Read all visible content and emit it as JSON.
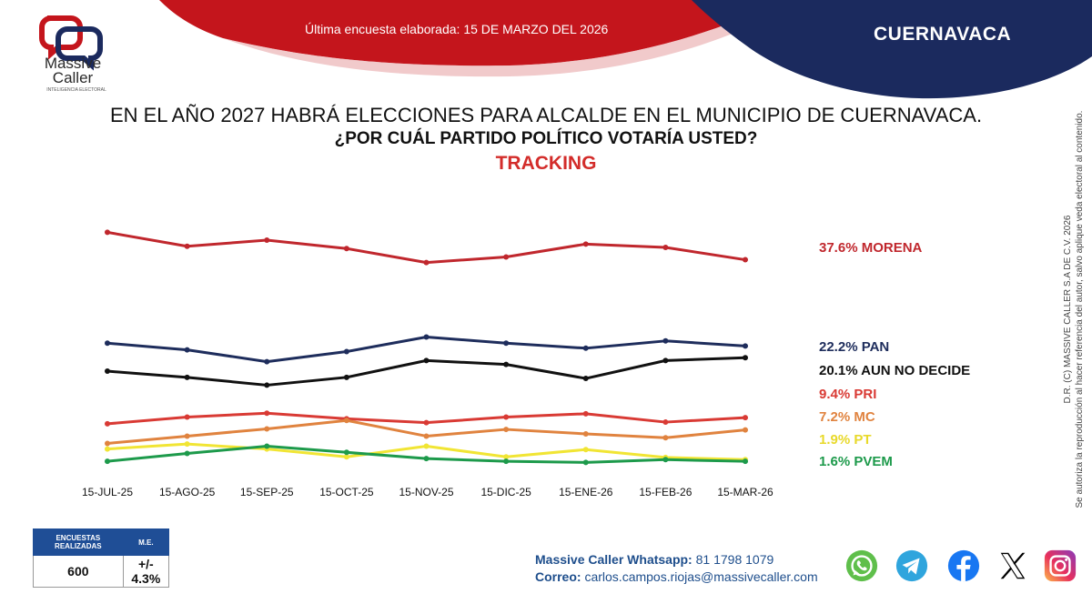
{
  "header": {
    "survey_date": "Última encuesta elaborada: 15 DE MARZO DEL 2026",
    "city": "CUERNAVACA",
    "colors": {
      "red": "#c4151c",
      "navy": "#1b2a5e"
    }
  },
  "logo": {
    "name_line1": "Massive",
    "name_line2": "Caller",
    "tagline": "INTELIGENCIA ELECTORAL"
  },
  "titles": {
    "line1": "EN EL AÑO 2027 HABRÁ ELECCIONES PARA ALCALDE EN EL MUNICIPIO DE CUERNAVACA.",
    "line2": "¿POR CUÁL PARTIDO POLÍTICO VOTARÍA USTED?",
    "line3": "TRACKING"
  },
  "chart_data": {
    "type": "line",
    "title": "TRACKING",
    "categories": [
      "15-JUL-25",
      "15-AGO-25",
      "15-SEP-25",
      "15-OCT-25",
      "15-NOV-25",
      "15-DIC-25",
      "15-ENE-26",
      "15-FEB-26",
      "15-MAR-26"
    ],
    "ylim": [
      0,
      45
    ],
    "grid": false,
    "legend": "right",
    "series": [
      {
        "name": "MORENA",
        "label": "37.6% MORENA",
        "color": "#c0272d",
        "values": [
          42.5,
          40.0,
          41.1,
          39.6,
          37.1,
          38.1,
          40.4,
          39.8,
          37.6
        ]
      },
      {
        "name": "PAN",
        "label": "22.2% PAN",
        "color": "#1e2d5c",
        "values": [
          22.7,
          21.5,
          19.4,
          21.2,
          23.8,
          22.7,
          21.8,
          23.1,
          22.2
        ]
      },
      {
        "name": "AUN NO DECIDE",
        "label": "20.1% AUN NO DECIDE",
        "color": "#111111",
        "values": [
          17.7,
          16.6,
          15.2,
          16.6,
          19.6,
          18.9,
          16.4,
          19.6,
          20.1
        ]
      },
      {
        "name": "PRI",
        "label": "9.4% PRI",
        "color": "#d93a34",
        "values": [
          8.3,
          9.5,
          10.2,
          9.2,
          8.5,
          9.5,
          10.1,
          8.6,
          9.4
        ]
      },
      {
        "name": "MC",
        "label": "7.2% MC",
        "color": "#e0833f",
        "values": [
          4.8,
          6.1,
          7.4,
          8.9,
          6.1,
          7.3,
          6.5,
          5.8,
          7.2
        ]
      },
      {
        "name": "PT",
        "label": "1.9% PT",
        "color": "#f1e534",
        "values": [
          3.8,
          4.7,
          3.8,
          2.4,
          4.3,
          2.4,
          3.7,
          2.3,
          1.9
        ]
      },
      {
        "name": "PVEM",
        "label": "1.6% PVEM",
        "color": "#1d9a4b",
        "values": [
          1.6,
          3.0,
          4.3,
          3.2,
          2.1,
          1.6,
          1.4,
          1.9,
          1.6
        ]
      }
    ]
  },
  "side_note": {
    "line1": "D.R. (C) MASSIVE CALLER S.A DE C.V. 2026",
    "line2": "Se autoriza la reproducción al hacer referencia del autor, salvo aplique veda electoral al contenido."
  },
  "stats_table": {
    "header_polls": "ENCUESTAS REALIZADAS",
    "header_me": "M.E.",
    "polls": "600",
    "me": "+/- 4.3%"
  },
  "contact": {
    "whatsapp_label": "Massive Caller Whatsapp:",
    "whatsapp_number": "81 1798 1079",
    "email_label": "Correo:",
    "email": "carlos.campos.riojas@massivecaller.com"
  },
  "social_icons": [
    "whatsapp-icon",
    "telegram-icon",
    "facebook-icon",
    "x-icon",
    "instagram-icon"
  ]
}
